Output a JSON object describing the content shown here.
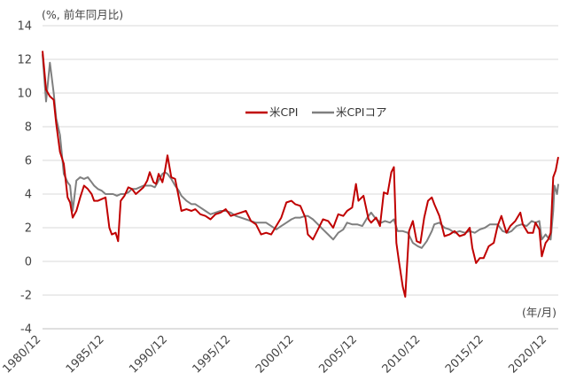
{
  "chart_data": {
    "type": "line",
    "y_unit_label": "(%, 前年同月比)",
    "x_unit_label": "(年/月)",
    "xlabel": "",
    "ylabel": "",
    "ylim": [
      -4,
      14
    ],
    "y_ticks": [
      -4,
      -2,
      0,
      2,
      4,
      6,
      8,
      10,
      12,
      14
    ],
    "y_tick_labels": [
      "-4",
      "-2",
      "0",
      "2",
      "4",
      "6",
      "8",
      "10",
      "12",
      "14"
    ],
    "x_ticks": [
      1980.92,
      1985.92,
      1990.92,
      1995.92,
      2000.92,
      2005.92,
      2010.92,
      2015.92,
      2020.92
    ],
    "x_tick_labels": [
      "1980/12",
      "1985/12",
      "1990/12",
      "1995/12",
      "2000/12",
      "2005/12",
      "2010/12",
      "2015/12",
      "2020/12"
    ],
    "xlim": [
      1980.92,
      2021.7
    ],
    "grid": "horizontal",
    "legend_placement": "center-top",
    "series": [
      {
        "name": "米CPI",
        "color": "#c00000",
        "x": [
          1980.92,
          1981.2,
          1981.5,
          1981.8,
          1982.0,
          1982.3,
          1982.6,
          1982.9,
          1983.1,
          1983.3,
          1983.6,
          1983.9,
          1984.2,
          1984.5,
          1984.8,
          1985.0,
          1985.3,
          1985.6,
          1985.9,
          1986.2,
          1986.4,
          1986.7,
          1986.9,
          1987.1,
          1987.4,
          1987.7,
          1988.0,
          1988.3,
          1988.6,
          1988.9,
          1989.2,
          1989.4,
          1989.7,
          1989.9,
          1990.1,
          1990.4,
          1990.6,
          1990.8,
          1991.1,
          1991.4,
          1991.7,
          1991.9,
          1992.3,
          1992.7,
          1993.0,
          1993.4,
          1993.8,
          1994.2,
          1994.6,
          1995.0,
          1995.4,
          1995.8,
          1996.2,
          1996.6,
          1997.0,
          1997.4,
          1997.8,
          1998.2,
          1998.6,
          1999.0,
          1999.4,
          1999.8,
          2000.2,
          2000.6,
          2000.9,
          2001.3,
          2001.7,
          2001.9,
          2002.3,
          2002.7,
          2003.1,
          2003.5,
          2003.9,
          2004.3,
          2004.7,
          2005.0,
          2005.4,
          2005.7,
          2005.9,
          2006.3,
          2006.7,
          2006.9,
          2007.3,
          2007.6,
          2007.9,
          2008.2,
          2008.5,
          2008.7,
          2008.9,
          2009.1,
          2009.4,
          2009.6,
          2009.9,
          2010.2,
          2010.5,
          2010.8,
          2011.1,
          2011.4,
          2011.7,
          2011.9,
          2012.3,
          2012.7,
          2013.1,
          2013.5,
          2013.9,
          2014.3,
          2014.7,
          2014.9,
          2015.2,
          2015.5,
          2015.8,
          2016.2,
          2016.6,
          2016.9,
          2017.2,
          2017.6,
          2017.9,
          2018.3,
          2018.7,
          2018.9,
          2019.3,
          2019.7,
          2019.9,
          2020.2,
          2020.4,
          2020.7,
          2020.9,
          2021.1,
          2021.3,
          2021.5,
          2021.7
        ],
        "values": [
          12.5,
          10.2,
          9.8,
          9.6,
          8.2,
          6.5,
          5.8,
          3.8,
          3.5,
          2.6,
          3.0,
          3.8,
          4.5,
          4.3,
          4.0,
          3.6,
          3.6,
          3.7,
          3.8,
          2.0,
          1.6,
          1.7,
          1.2,
          3.6,
          3.9,
          4.4,
          4.3,
          4.0,
          4.2,
          4.4,
          4.8,
          5.3,
          4.7,
          4.6,
          5.2,
          4.7,
          5.4,
          6.3,
          5.0,
          4.9,
          3.8,
          3.0,
          3.1,
          3.0,
          3.1,
          2.8,
          2.7,
          2.5,
          2.8,
          2.9,
          3.1,
          2.7,
          2.8,
          2.9,
          3.0,
          2.4,
          2.2,
          1.6,
          1.7,
          1.6,
          2.1,
          2.6,
          3.5,
          3.6,
          3.4,
          3.3,
          2.6,
          1.6,
          1.3,
          1.9,
          2.5,
          2.4,
          2.0,
          2.8,
          2.7,
          3.0,
          3.2,
          4.6,
          3.6,
          3.9,
          2.5,
          2.3,
          2.6,
          2.1,
          4.1,
          4.0,
          5.3,
          5.6,
          1.1,
          0.0,
          -1.5,
          -2.1,
          1.8,
          2.4,
          1.2,
          1.1,
          2.6,
          3.6,
          3.8,
          3.4,
          2.7,
          1.5,
          1.6,
          1.8,
          1.5,
          1.6,
          2.0,
          0.8,
          -0.1,
          0.2,
          0.2,
          0.9,
          1.1,
          2.1,
          2.7,
          1.7,
          2.1,
          2.4,
          2.9,
          2.2,
          1.7,
          1.7,
          2.3,
          1.9,
          0.3,
          1.1,
          1.3,
          1.7,
          5.0,
          5.4,
          6.2
        ]
      },
      {
        "name": "米CPIコア",
        "color": "#7f7f7f",
        "x": [
          1980.92,
          1981.2,
          1981.5,
          1981.8,
          1982.0,
          1982.3,
          1982.6,
          1982.9,
          1983.1,
          1983.3,
          1983.6,
          1983.9,
          1984.2,
          1984.5,
          1984.8,
          1985.0,
          1985.3,
          1985.6,
          1985.9,
          1986.2,
          1986.5,
          1986.8,
          1987.1,
          1987.4,
          1987.7,
          1988.0,
          1988.3,
          1988.6,
          1988.9,
          1989.2,
          1989.5,
          1989.8,
          1990.1,
          1990.4,
          1990.6,
          1990.8,
          1991.1,
          1991.4,
          1991.7,
          1991.9,
          1992.3,
          1992.7,
          1993.0,
          1993.4,
          1993.8,
          1994.2,
          1994.6,
          1995.0,
          1995.4,
          1995.8,
          1996.2,
          1996.6,
          1997.0,
          1997.4,
          1997.8,
          1998.2,
          1998.6,
          1999.0,
          1999.4,
          1999.8,
          2000.2,
          2000.6,
          2000.9,
          2001.3,
          2001.7,
          2001.9,
          2002.3,
          2002.7,
          2003.1,
          2003.5,
          2003.9,
          2004.3,
          2004.7,
          2005.0,
          2005.4,
          2005.8,
          2006.2,
          2006.6,
          2006.9,
          2007.3,
          2007.7,
          2008.0,
          2008.4,
          2008.7,
          2009.0,
          2009.4,
          2009.8,
          2010.2,
          2010.6,
          2010.9,
          2011.3,
          2011.7,
          2011.9,
          2012.3,
          2012.7,
          2013.1,
          2013.5,
          2013.9,
          2014.3,
          2014.7,
          2015.1,
          2015.5,
          2015.9,
          2016.3,
          2016.7,
          2016.9,
          2017.3,
          2017.7,
          2018.0,
          2018.4,
          2018.8,
          2019.2,
          2019.6,
          2019.9,
          2020.2,
          2020.4,
          2020.7,
          2020.9,
          2021.1,
          2021.3,
          2021.4,
          2021.6,
          2021.7
        ],
        "values": [
          12.3,
          9.5,
          11.8,
          10.0,
          8.5,
          7.5,
          5.2,
          4.7,
          4.5,
          3.0,
          4.8,
          5.0,
          4.9,
          5.0,
          4.7,
          4.5,
          4.3,
          4.2,
          4.0,
          4.0,
          4.0,
          3.9,
          4.0,
          4.0,
          4.1,
          4.3,
          4.3,
          4.4,
          4.5,
          4.5,
          4.5,
          4.4,
          4.8,
          5.2,
          5.3,
          5.2,
          4.9,
          4.5,
          4.2,
          3.9,
          3.6,
          3.4,
          3.4,
          3.2,
          3.0,
          2.8,
          2.9,
          3.0,
          3.0,
          2.9,
          2.7,
          2.6,
          2.5,
          2.4,
          2.3,
          2.3,
          2.3,
          2.1,
          1.9,
          2.1,
          2.3,
          2.5,
          2.6,
          2.6,
          2.7,
          2.7,
          2.5,
          2.2,
          1.9,
          1.6,
          1.3,
          1.7,
          1.9,
          2.3,
          2.2,
          2.2,
          2.1,
          2.6,
          2.9,
          2.5,
          2.3,
          2.4,
          2.3,
          2.5,
          1.8,
          1.8,
          1.7,
          1.1,
          0.9,
          0.8,
          1.2,
          1.8,
          2.2,
          2.3,
          2.0,
          1.9,
          1.7,
          1.8,
          1.7,
          1.8,
          1.7,
          1.9,
          2.0,
          2.2,
          2.2,
          2.2,
          1.8,
          1.7,
          1.8,
          2.1,
          2.2,
          2.1,
          2.4,
          2.3,
          2.4,
          1.3,
          1.6,
          1.4,
          1.3,
          3.0,
          4.5,
          4.0,
          4.6
        ]
      }
    ]
  }
}
